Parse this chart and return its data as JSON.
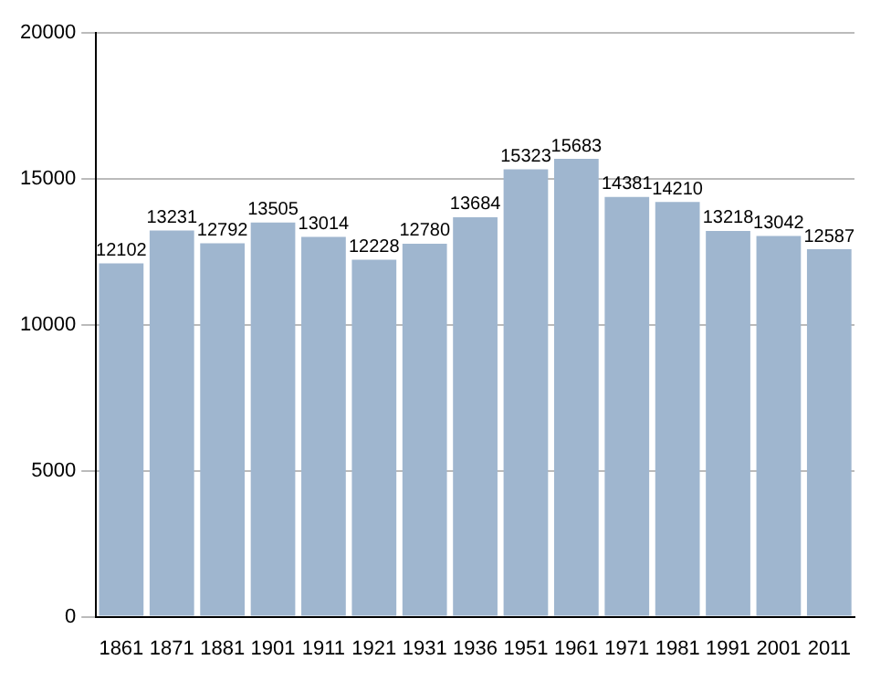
{
  "chart_data": {
    "type": "bar",
    "categories": [
      "1861",
      "1871",
      "1881",
      "1901",
      "1911",
      "1921",
      "1931",
      "1936",
      "1951",
      "1961",
      "1971",
      "1981",
      "1991",
      "2001",
      "2011"
    ],
    "values": [
      12102,
      13231,
      12792,
      13505,
      13014,
      12228,
      12780,
      13684,
      15323,
      15683,
      14381,
      14210,
      13218,
      13042,
      12587
    ],
    "color": "#9fb6cf",
    "ylim": [
      0,
      20000
    ],
    "yticks": [
      0,
      5000,
      10000,
      15000,
      20000
    ],
    "grid": "y",
    "data_labels": true,
    "legend": false
  }
}
